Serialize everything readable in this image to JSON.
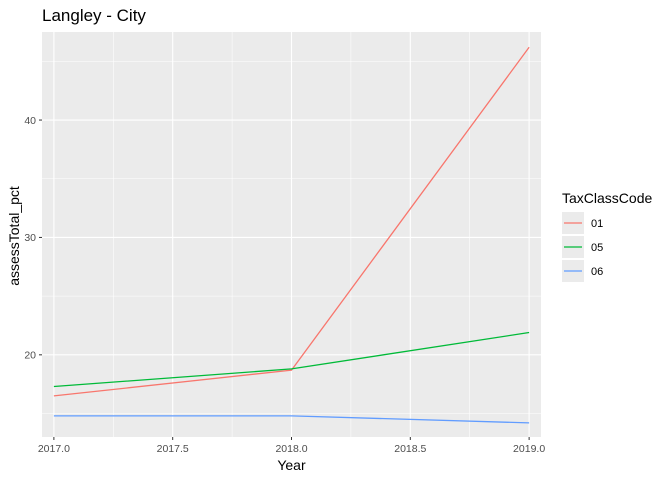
{
  "chart_data": {
    "type": "line",
    "title": "Langley - City",
    "xlabel": "Year",
    "ylabel": "assessTotal_pct",
    "xlim": [
      2016.95,
      2019.05
    ],
    "ylim": [
      13.0,
      47.5
    ],
    "x_major_ticks": [
      2017.0,
      2017.5,
      2018.0,
      2018.5,
      2019.0
    ],
    "x_tick_labels": [
      "2017.0",
      "2017.5",
      "2018.0",
      "2018.5",
      "2019.0"
    ],
    "y_major_ticks": [
      20,
      30,
      40
    ],
    "y_tick_labels": [
      "20",
      "30",
      "40"
    ],
    "grid": true,
    "legend": {
      "title": "TaxClassCode",
      "placement": "right"
    },
    "x": [
      2017,
      2018,
      2019
    ],
    "series": [
      {
        "name": "01",
        "color": "#F8766D",
        "values": [
          16.5,
          18.7,
          46.2
        ]
      },
      {
        "name": "05",
        "color": "#00BA38",
        "values": [
          17.3,
          18.8,
          21.9
        ]
      },
      {
        "name": "06",
        "color": "#619CFF",
        "values": [
          14.8,
          14.8,
          14.2
        ]
      }
    ]
  }
}
